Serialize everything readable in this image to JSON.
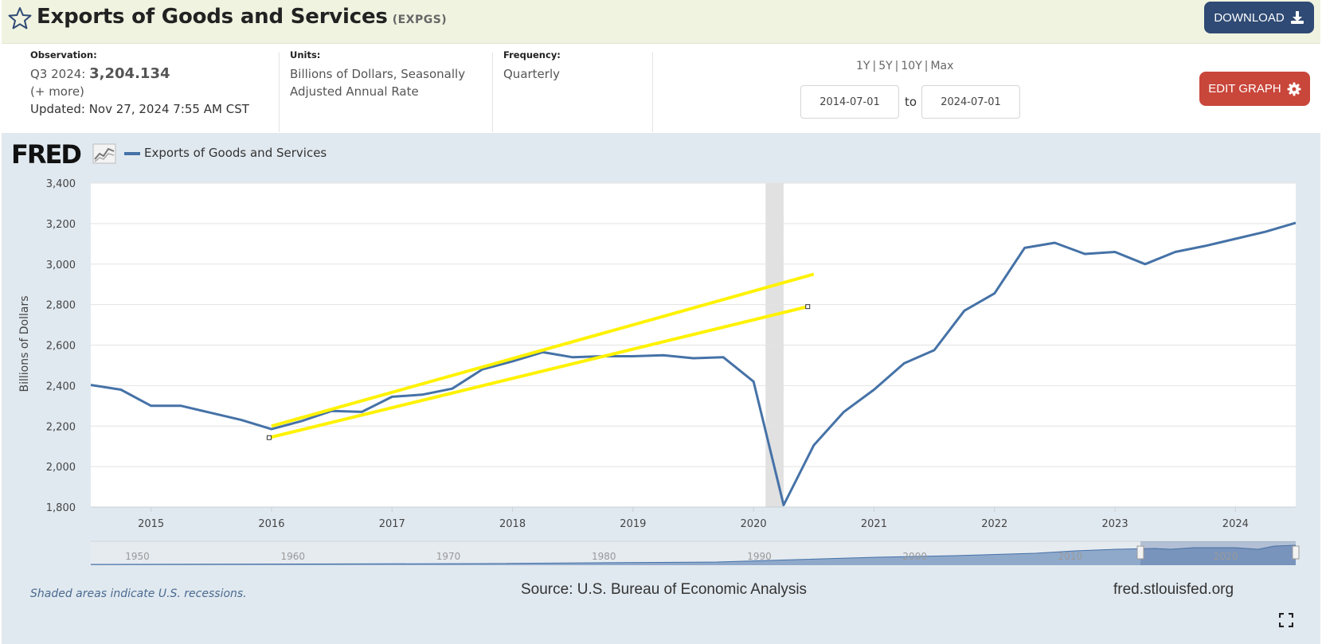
{
  "header": {
    "title": "Exports of Goods and Services",
    "series_id": "(EXPGS)",
    "download_label": "DOWNLOAD"
  },
  "info": {
    "observation_label": "Observation:",
    "observation_period": "Q3 2024:",
    "observation_value": "3,204.134",
    "more_link": "(+ more)",
    "updated_label": "Updated:",
    "updated_value": "Nov 27, 2024 7:55 AM CST",
    "units_label": "Units:",
    "units_value": "Billions of Dollars, Seasonally Adjusted Annual Rate",
    "frequency_label": "Frequency:",
    "frequency_value": "Quarterly"
  },
  "range": {
    "links": [
      "1Y",
      "5Y",
      "10Y",
      "Max"
    ],
    "start_date": "2014-07-01",
    "to_label": "to",
    "end_date": "2024-07-01"
  },
  "edit_graph_label": "EDIT GRAPH",
  "graph": {
    "logo": "FRED",
    "legend_label": "Exports of Goods and Services",
    "footnote": "Shaded areas indicate U.S. recessions.",
    "source": "Source: U.S. Bureau of Economic Analysis",
    "site": "fred.stlouisfed.org",
    "navigator_labels": [
      "1950",
      "1960",
      "1970",
      "1980",
      "1990",
      "2000",
      "2010",
      "2020"
    ]
  },
  "colors": {
    "series": "#4572a7",
    "trendline": "#fff200",
    "recession": "#e1e1e1",
    "background": "#e1e9f0",
    "download_button": "#2f4a74",
    "edit_button": "#c9463a"
  },
  "icons": {
    "star": "star-icon",
    "download": "download-icon",
    "edit": "gear-icon",
    "fullscreen": "fullscreen-icon"
  },
  "chart_data": {
    "type": "line",
    "title": "",
    "xlabel": "",
    "ylabel": "Billions of Dollars",
    "ylim": [
      1800,
      3400
    ],
    "xlim": [
      2014.5,
      2024.5
    ],
    "y_ticks": [
      "1,800",
      "2,000",
      "2,200",
      "2,400",
      "2,600",
      "2,800",
      "3,000",
      "3,200",
      "3,400"
    ],
    "x_ticks": [
      "2015",
      "2016",
      "2017",
      "2018",
      "2019",
      "2020",
      "2021",
      "2022",
      "2023",
      "2024"
    ],
    "grid": true,
    "legend": "top-left",
    "recessions": [
      {
        "start": 2020.1,
        "end": 2020.25
      }
    ],
    "series": [
      {
        "name": "Exports of Goods and Services",
        "x": [
          2014.5,
          2014.75,
          2015.0,
          2015.25,
          2015.5,
          2015.75,
          2016.0,
          2016.25,
          2016.5,
          2016.75,
          2017.0,
          2017.25,
          2017.5,
          2017.75,
          2018.0,
          2018.25,
          2018.5,
          2018.75,
          2019.0,
          2019.25,
          2019.5,
          2019.75,
          2020.0,
          2020.25,
          2020.5,
          2020.75,
          2021.0,
          2021.25,
          2021.5,
          2021.75,
          2022.0,
          2022.25,
          2022.5,
          2022.75,
          2023.0,
          2023.25,
          2023.5,
          2023.75,
          2024.0,
          2024.25,
          2024.5
        ],
        "values": [
          2403,
          2380,
          2300,
          2300,
          2265,
          2230,
          2185,
          2225,
          2275,
          2270,
          2345,
          2355,
          2385,
          2480,
          2520,
          2565,
          2540,
          2545,
          2545,
          2550,
          2535,
          2540,
          2420,
          1810,
          2105,
          2270,
          2380,
          2510,
          2575,
          2770,
          2855,
          3080,
          3105,
          3050,
          3060,
          3000,
          3060,
          3090,
          3125,
          3160,
          3204
        ]
      }
    ],
    "annotations": [
      {
        "type": "trendline",
        "from": [
          2016.0,
          2200
        ],
        "to": [
          2020.5,
          2950
        ]
      },
      {
        "type": "trendline",
        "from": [
          2015.98,
          2143
        ],
        "to": [
          2020.45,
          2790
        ]
      }
    ]
  }
}
